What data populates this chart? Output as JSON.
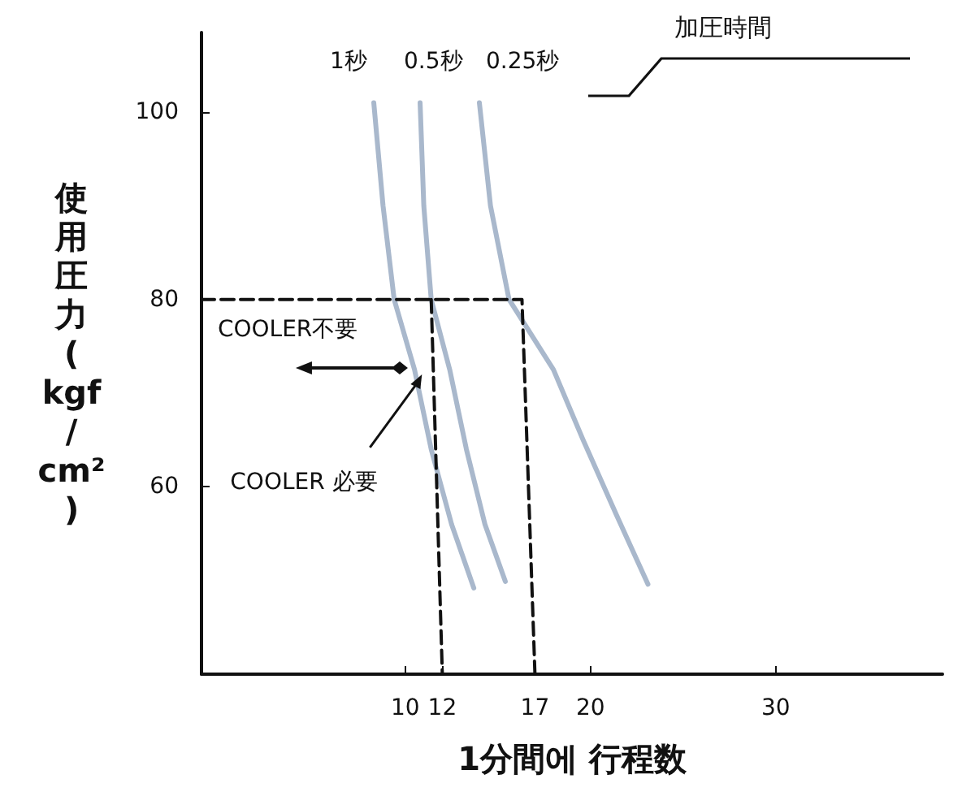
{
  "chart_data": {
    "type": "line",
    "xlabel": "1分間에 行程数",
    "ylabel": "使用圧力(kgf/cm²)",
    "legend_title": "加圧時間",
    "xlim": [
      -1,
      39
    ],
    "ylim": [
      40,
      108.5
    ],
    "xticks": [
      10,
      12,
      17,
      20,
      30
    ],
    "yticks": [
      60,
      80,
      100
    ],
    "grid": false,
    "legend": false,
    "series": [
      {
        "name": "1秒",
        "color": "#a9b8cc",
        "x": [
          8.3,
          8.8,
          9.4,
          10.5,
          11.4,
          12.5,
          13.7
        ],
        "values": [
          101,
          90,
          80,
          72.5,
          64,
          56,
          49.2
        ]
      },
      {
        "name": "0.5秒",
        "color": "#a9b8cc",
        "x": [
          10.8,
          11,
          11.4,
          12.4,
          13.3,
          14.3,
          15.4
        ],
        "values": [
          101,
          90,
          80,
          72.5,
          64,
          56,
          49.9
        ]
      },
      {
        "name": "0.25秒",
        "color": "#a9b8cc",
        "x": [
          14,
          14.6,
          15.6,
          18,
          19.6,
          21.4,
          23.1
        ],
        "values": [
          101,
          90,
          80,
          72.5,
          65,
          57,
          49.6
        ]
      },
      {
        "color": "#111111",
        "line_style": "dashed",
        "x": [
          -1,
          16.3,
          17
        ],
        "values": [
          80,
          80,
          40
        ]
      },
      {
        "color": "#111111",
        "line_style": "dashed",
        "x": [
          11.4,
          12
        ],
        "values": [
          80,
          40
        ]
      }
    ],
    "annotations": [
      {
        "text": "COOLER不要",
        "x": 9.7,
        "y": 72.7
      },
      {
        "text": "COOLER 必要",
        "x": 10.9,
        "y": 72
      }
    ]
  }
}
